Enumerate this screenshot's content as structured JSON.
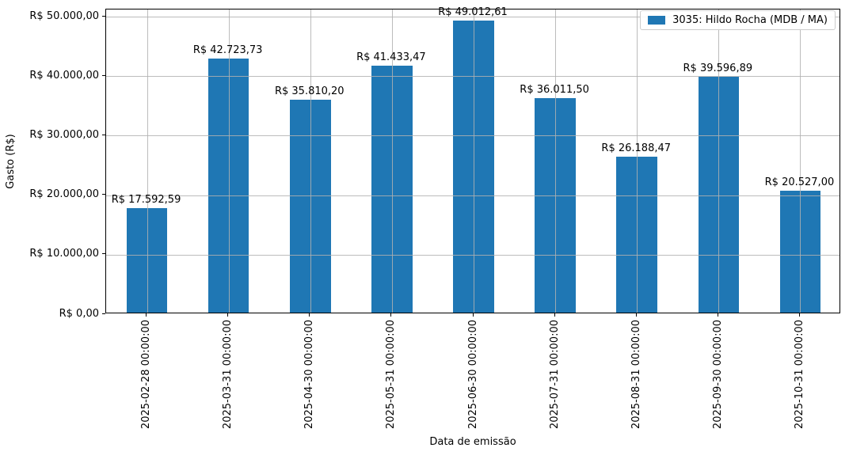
{
  "chart_data": {
    "type": "bar",
    "title": "",
    "xlabel": "Data de emissão",
    "ylabel": "Gasto (R$)",
    "categories": [
      "2025-02-28 00:00:00",
      "2025-03-31 00:00:00",
      "2025-04-30 00:00:00",
      "2025-05-31 00:00:00",
      "2025-06-30 00:00:00",
      "2025-07-31 00:00:00",
      "2025-08-31 00:00:00",
      "2025-09-30 00:00:00",
      "2025-10-31 00:00:00"
    ],
    "series": [
      {
        "name": "3035: Hildo Rocha (MDB / MA)",
        "color": "#1f77b4",
        "values": [
          17592.59,
          42723.73,
          35810.2,
          41433.47,
          49012.61,
          36011.5,
          26188.47,
          39596.89,
          20527.0
        ],
        "value_labels": [
          "R$ 17.592,59",
          "R$ 42.723,73",
          "R$ 35.810,20",
          "R$ 41.433,47",
          "R$ 49.012,61",
          "R$ 36.011,50",
          "R$ 26.188,47",
          "R$ 39.596,89",
          "R$ 20.527,00"
        ]
      }
    ],
    "yticks": {
      "values": [
        0,
        10000,
        20000,
        30000,
        40000,
        50000
      ],
      "labels": [
        "R$ 0,00",
        "R$ 10.000,00",
        "R$ 20.000,00",
        "R$ 30.000,00",
        "R$ 40.000,00",
        "R$ 50.000,00"
      ]
    },
    "ylim": [
      0,
      51200
    ],
    "grid": true,
    "grid_color": "#b0b0b0",
    "legend_position": "upper right"
  }
}
